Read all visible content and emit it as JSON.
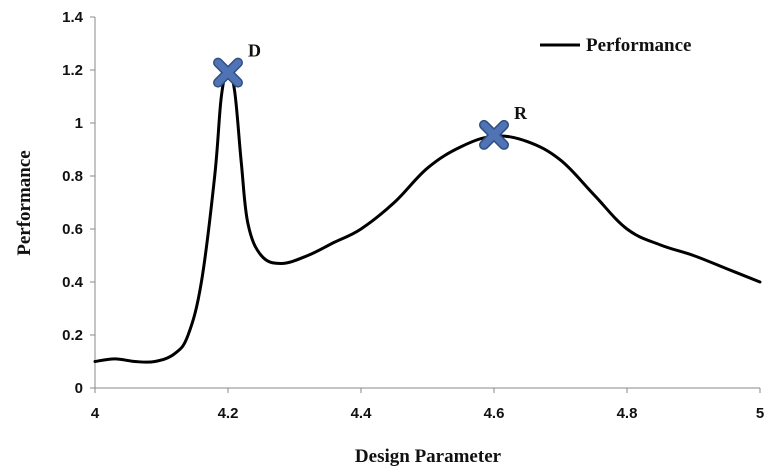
{
  "chart_data": {
    "type": "line",
    "title": "",
    "xlabel": "Design Parameter",
    "ylabel": "Performance",
    "xlim": [
      4,
      5
    ],
    "ylim": [
      0,
      1.4
    ],
    "x_ticks": [
      "4",
      "4.2",
      "4.4",
      "4.6",
      "4.8",
      "5"
    ],
    "y_ticks": [
      "0",
      "0.2",
      "0.4",
      "0.6",
      "0.8",
      "1",
      "1.2",
      "1.4"
    ],
    "grid": false,
    "legend_position": "top-right",
    "series": [
      {
        "name": "Performance",
        "color": "#000000",
        "x": [
          4.0,
          4.03,
          4.06,
          4.09,
          4.12,
          4.14,
          4.16,
          4.18,
          4.19,
          4.2,
          4.21,
          4.22,
          4.23,
          4.25,
          4.28,
          4.32,
          4.36,
          4.4,
          4.45,
          4.5,
          4.55,
          4.6,
          4.65,
          4.7,
          4.75,
          4.8,
          4.85,
          4.9,
          4.95,
          5.0
        ],
        "y": [
          0.1,
          0.11,
          0.1,
          0.1,
          0.13,
          0.2,
          0.4,
          0.8,
          1.1,
          1.2,
          1.12,
          0.85,
          0.62,
          0.5,
          0.47,
          0.5,
          0.55,
          0.6,
          0.7,
          0.83,
          0.91,
          0.95,
          0.93,
          0.86,
          0.73,
          0.6,
          0.54,
          0.5,
          0.45,
          0.4
        ]
      }
    ],
    "annotations": [
      {
        "label": "D",
        "x": 4.2,
        "y": 1.19,
        "marker": "cross",
        "color": "#4f73b4"
      },
      {
        "label": "R",
        "x": 4.6,
        "y": 0.955,
        "marker": "cross",
        "color": "#4f73b4"
      }
    ]
  }
}
